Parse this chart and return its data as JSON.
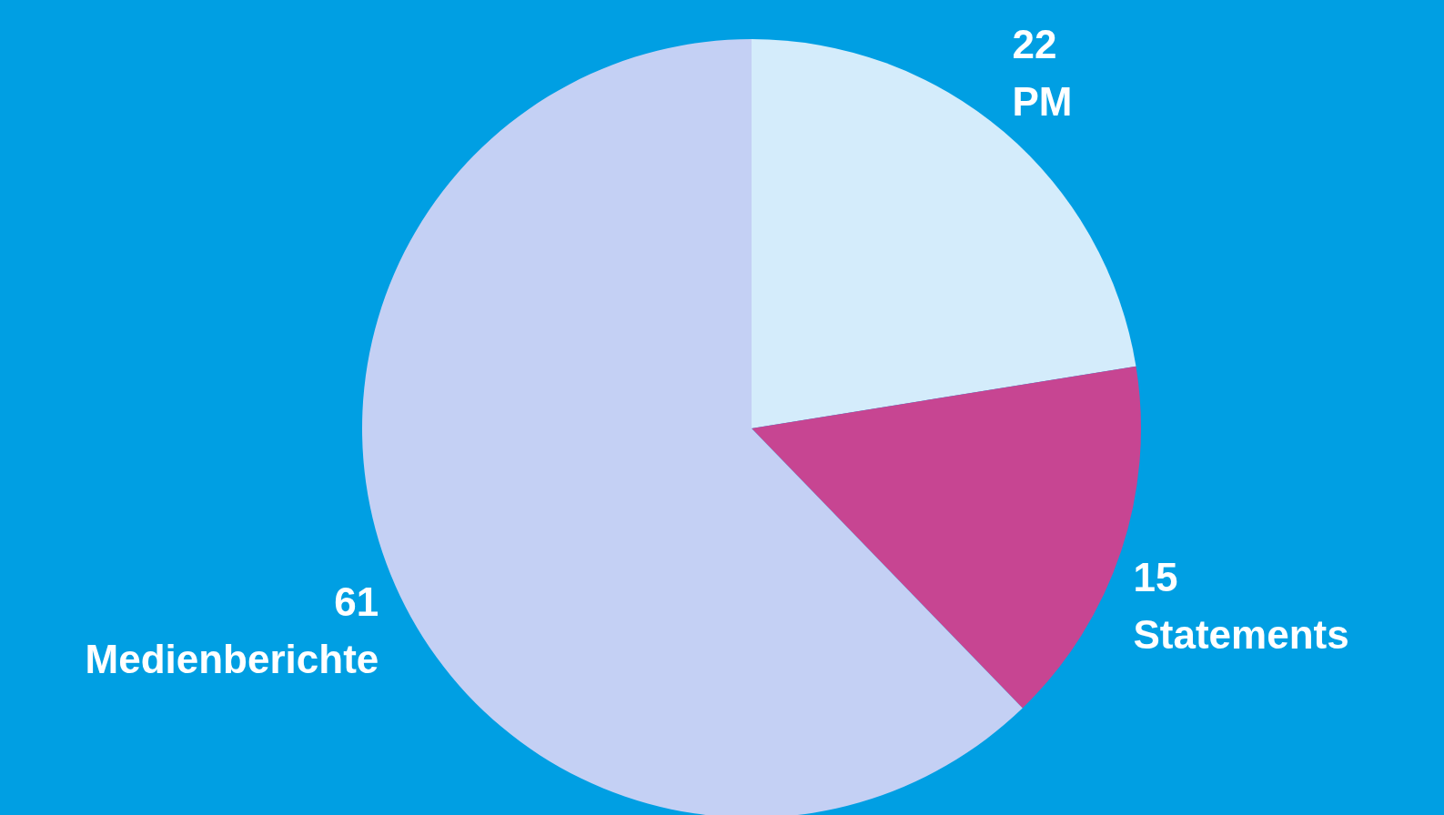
{
  "chart_data": {
    "type": "pie",
    "categories": [
      "PM",
      "Statements",
      "Medienberichte"
    ],
    "values": [
      22,
      15,
      61
    ],
    "colors": [
      "#d4ecfb",
      "#c74592",
      "#c4d0f4"
    ],
    "data_labels": true,
    "legend": false
  }
}
